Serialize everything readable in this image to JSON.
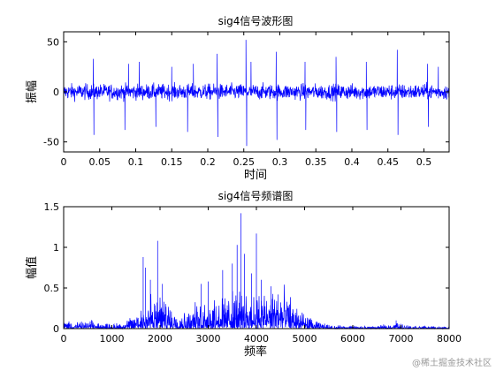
{
  "watermark": "@稀土掘金技术社区",
  "chart_data": [
    {
      "type": "line",
      "title": "sig4信号波形图",
      "xlabel": "时间",
      "ylabel": "振幅",
      "xlim": [
        0,
        0.535
      ],
      "ylim": [
        -60,
        60
      ],
      "x_ticks": [
        0,
        0.05,
        0.1,
        0.15,
        0.2,
        0.25,
        0.3,
        0.35,
        0.4,
        0.45,
        0.5
      ],
      "x_tick_labels": [
        "0",
        "0.05",
        "0.1",
        "0.15",
        "0.2",
        "0.25",
        "0.3",
        "0.35",
        "0.4",
        "0.45",
        "0.5"
      ],
      "y_ticks": [
        -50,
        0,
        50
      ],
      "y_tick_labels": [
        "-50",
        "0",
        "50"
      ],
      "grid": false,
      "color": "#0000ff",
      "noise_amplitude": 6,
      "spikes": [
        {
          "x": 0.041,
          "y": 33
        },
        {
          "x": 0.042,
          "y": -43
        },
        {
          "x": 0.085,
          "y": -38
        },
        {
          "x": 0.09,
          "y": 28
        },
        {
          "x": 0.105,
          "y": 30
        },
        {
          "x": 0.128,
          "y": -35
        },
        {
          "x": 0.15,
          "y": 25
        },
        {
          "x": 0.172,
          "y": -40
        },
        {
          "x": 0.18,
          "y": 28
        },
        {
          "x": 0.213,
          "y": 38
        },
        {
          "x": 0.214,
          "y": -45
        },
        {
          "x": 0.253,
          "y": 52
        },
        {
          "x": 0.254,
          "y": -54
        },
        {
          "x": 0.26,
          "y": 30
        },
        {
          "x": 0.295,
          "y": 40
        },
        {
          "x": 0.296,
          "y": -48
        },
        {
          "x": 0.335,
          "y": 30
        },
        {
          "x": 0.336,
          "y": -38
        },
        {
          "x": 0.378,
          "y": 35
        },
        {
          "x": 0.379,
          "y": -40
        },
        {
          "x": 0.42,
          "y": 30
        },
        {
          "x": 0.421,
          "y": -38
        },
        {
          "x": 0.463,
          "y": 42
        },
        {
          "x": 0.464,
          "y": -43
        },
        {
          "x": 0.505,
          "y": 28
        },
        {
          "x": 0.506,
          "y": -35
        },
        {
          "x": 0.52,
          "y": 25
        }
      ]
    },
    {
      "type": "line",
      "title": "sig4信号频谱图",
      "xlabel": "频率",
      "ylabel": "幅值",
      "xlim": [
        0,
        8000
      ],
      "ylim": [
        0,
        1.5
      ],
      "x_ticks": [
        0,
        1000,
        2000,
        3000,
        4000,
        5000,
        6000,
        7000,
        8000
      ],
      "x_tick_labels": [
        "0",
        "1000",
        "2000",
        "3000",
        "4000",
        "5000",
        "6000",
        "7000",
        "8000"
      ],
      "y_ticks": [
        0,
        0.5,
        1,
        1.5
      ],
      "y_tick_labels": [
        "0",
        "0.5",
        "1",
        "1.5"
      ],
      "grid": false,
      "color": "#0000ff",
      "envelope": [
        {
          "x": 0,
          "y": 0.06
        },
        {
          "x": 300,
          "y": 0.04
        },
        {
          "x": 600,
          "y": 0.05
        },
        {
          "x": 1000,
          "y": 0.03
        },
        {
          "x": 1300,
          "y": 0.05
        },
        {
          "x": 1500,
          "y": 0.1
        },
        {
          "x": 1700,
          "y": 0.22
        },
        {
          "x": 1900,
          "y": 0.25
        },
        {
          "x": 2100,
          "y": 0.2
        },
        {
          "x": 2400,
          "y": 0.1
        },
        {
          "x": 2600,
          "y": 0.12
        },
        {
          "x": 2800,
          "y": 0.18
        },
        {
          "x": 3100,
          "y": 0.2
        },
        {
          "x": 3400,
          "y": 0.22
        },
        {
          "x": 3700,
          "y": 0.26
        },
        {
          "x": 4000,
          "y": 0.24
        },
        {
          "x": 4300,
          "y": 0.25
        },
        {
          "x": 4500,
          "y": 0.27
        },
        {
          "x": 4700,
          "y": 0.22
        },
        {
          "x": 4900,
          "y": 0.12
        },
        {
          "x": 5200,
          "y": 0.05
        },
        {
          "x": 5600,
          "y": 0.02
        },
        {
          "x": 6500,
          "y": 0.015
        },
        {
          "x": 6900,
          "y": 0.04
        },
        {
          "x": 7200,
          "y": 0.02
        },
        {
          "x": 8000,
          "y": 0.01
        }
      ],
      "peaks": [
        {
          "x": 1650,
          "y": 0.88
        },
        {
          "x": 1700,
          "y": 0.75
        },
        {
          "x": 1800,
          "y": 0.6
        },
        {
          "x": 1950,
          "y": 1.08
        },
        {
          "x": 2050,
          "y": 0.55
        },
        {
          "x": 2850,
          "y": 0.55
        },
        {
          "x": 3000,
          "y": 0.58
        },
        {
          "x": 3300,
          "y": 0.72
        },
        {
          "x": 3500,
          "y": 0.8
        },
        {
          "x": 3600,
          "y": 1.03
        },
        {
          "x": 3680,
          "y": 1.42
        },
        {
          "x": 3750,
          "y": 0.92
        },
        {
          "x": 3900,
          "y": 0.68
        },
        {
          "x": 4000,
          "y": 1.17
        },
        {
          "x": 4100,
          "y": 0.6
        },
        {
          "x": 4300,
          "y": 0.52
        },
        {
          "x": 4450,
          "y": 0.42
        },
        {
          "x": 6900,
          "y": 0.1
        }
      ]
    }
  ]
}
